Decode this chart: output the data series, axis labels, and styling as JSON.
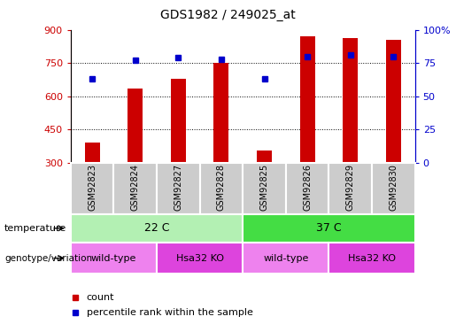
{
  "title": "GDS1982 / 249025_at",
  "samples": [
    "GSM92823",
    "GSM92824",
    "GSM92827",
    "GSM92828",
    "GSM92825",
    "GSM92826",
    "GSM92829",
    "GSM92830"
  ],
  "counts": [
    390,
    635,
    680,
    750,
    355,
    870,
    865,
    855
  ],
  "percentiles": [
    63,
    77,
    79,
    78,
    63,
    80,
    81,
    80
  ],
  "ylim_left": [
    300,
    900
  ],
  "ylim_right": [
    0,
    100
  ],
  "yticks_left": [
    300,
    450,
    600,
    750,
    900
  ],
  "yticks_right": [
    0,
    25,
    50,
    75,
    100
  ],
  "bar_color": "#cc0000",
  "dot_color": "#0000cc",
  "bar_width": 0.35,
  "temperature_groups": [
    {
      "label": "22 C",
      "start": 0,
      "end": 4,
      "color": "#b3f0b3"
    },
    {
      "label": "37 C",
      "start": 4,
      "end": 8,
      "color": "#44dd44"
    }
  ],
  "genotype_groups": [
    {
      "label": "wild-type",
      "start": 0,
      "end": 2,
      "color": "#ee82ee"
    },
    {
      "label": "Hsa32 KO",
      "start": 2,
      "end": 4,
      "color": "#dd44dd"
    },
    {
      "label": "wild-type",
      "start": 4,
      "end": 6,
      "color": "#ee82ee"
    },
    {
      "label": "Hsa32 KO",
      "start": 6,
      "end": 8,
      "color": "#dd44dd"
    }
  ],
  "left_axis_color": "#cc0000",
  "right_axis_color": "#0000cc",
  "sample_box_color": "#cccccc",
  "plot_bg_color": "#ffffff",
  "tick_label_fontsize": 8,
  "title_fontsize": 10
}
